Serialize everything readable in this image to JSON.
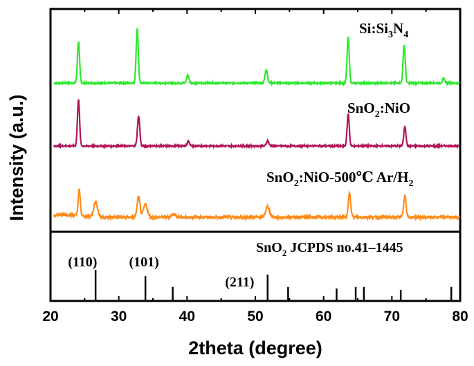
{
  "chart_data": {
    "type": "line",
    "xlabel": "2theta (degree)",
    "ylabel": "Intensity (a.u.)",
    "xlim": [
      20,
      80
    ],
    "x_ticks": [
      20,
      30,
      40,
      50,
      60,
      70,
      80
    ],
    "grid": false,
    "series": [
      {
        "name": "Si:Si3N4",
        "label_main": "Si:Si",
        "label_sub1": "3",
        "label_mid": "N",
        "label_sub2": "4",
        "color": "#2ee82e",
        "baseline": 1.0,
        "peaks": [
          {
            "x": 24.1,
            "height": 5.5,
            "width": 0.22
          },
          {
            "x": 32.7,
            "height": 7.2,
            "width": 0.22
          },
          {
            "x": 40.1,
            "height": 1.0,
            "width": 0.25
          },
          {
            "x": 51.6,
            "height": 1.8,
            "width": 0.25
          },
          {
            "x": 63.6,
            "height": 6.0,
            "width": 0.22
          },
          {
            "x": 71.8,
            "height": 5.0,
            "width": 0.22
          },
          {
            "x": 77.6,
            "height": 0.6,
            "width": 0.25
          }
        ]
      },
      {
        "name": "SnO2:NiO",
        "label_main": "SnO",
        "label_sub1": "2",
        "label_tail": ":NiO",
        "color": "#b0145a",
        "baseline": 1.0,
        "peaks": [
          {
            "x": 24.1,
            "height": 6.2,
            "width": 0.22
          },
          {
            "x": 32.9,
            "height": 3.9,
            "width": 0.24
          },
          {
            "x": 40.2,
            "height": 0.6,
            "width": 0.25
          },
          {
            "x": 51.8,
            "height": 0.7,
            "width": 0.25
          },
          {
            "x": 63.6,
            "height": 4.2,
            "width": 0.22
          },
          {
            "x": 71.9,
            "height": 2.6,
            "width": 0.22
          }
        ]
      },
      {
        "name": "SnO2:NiO-500℃ Ar/H2",
        "label_main": "SnO",
        "label_sub1": "2",
        "label_tail": ":NiO-500℃ Ar/H",
        "label_sub2": "2",
        "color": "#ff8c1a",
        "baseline": 1.0,
        "peaks": [
          {
            "x": 24.2,
            "height": 3.4,
            "width": 0.22
          },
          {
            "x": 26.6,
            "height": 2.0,
            "width": 0.4
          },
          {
            "x": 32.9,
            "height": 2.6,
            "width": 0.3
          },
          {
            "x": 33.9,
            "height": 1.7,
            "width": 0.4
          },
          {
            "x": 38.0,
            "height": 0.4,
            "width": 0.5
          },
          {
            "x": 51.8,
            "height": 1.4,
            "width": 0.4
          },
          {
            "x": 63.8,
            "height": 3.2,
            "width": 0.25
          },
          {
            "x": 71.9,
            "height": 2.9,
            "width": 0.25
          }
        ]
      }
    ],
    "reference": {
      "label_main": "SnO",
      "label_sub": "2",
      "label_tail": " JCPDS no.41–1445",
      "lines": [
        {
          "x": 26.6,
          "intensity": 100
        },
        {
          "x": 33.9,
          "intensity": 80
        },
        {
          "x": 37.9,
          "intensity": 45
        },
        {
          "x": 51.8,
          "intensity": 85
        },
        {
          "x": 54.8,
          "intensity": 45
        },
        {
          "x": 61.9,
          "intensity": 40
        },
        {
          "x": 64.7,
          "intensity": 45
        },
        {
          "x": 65.9,
          "intensity": 45
        },
        {
          "x": 71.3,
          "intensity": 35
        },
        {
          "x": 78.7,
          "intensity": 45
        }
      ],
      "annotations": [
        {
          "text": "(110)",
          "x": 24.7,
          "row": 1
        },
        {
          "text": "(101)",
          "x": 33.7,
          "row": 1
        },
        {
          "text": "(211)",
          "x": 47.7,
          "row": 2
        }
      ]
    }
  }
}
